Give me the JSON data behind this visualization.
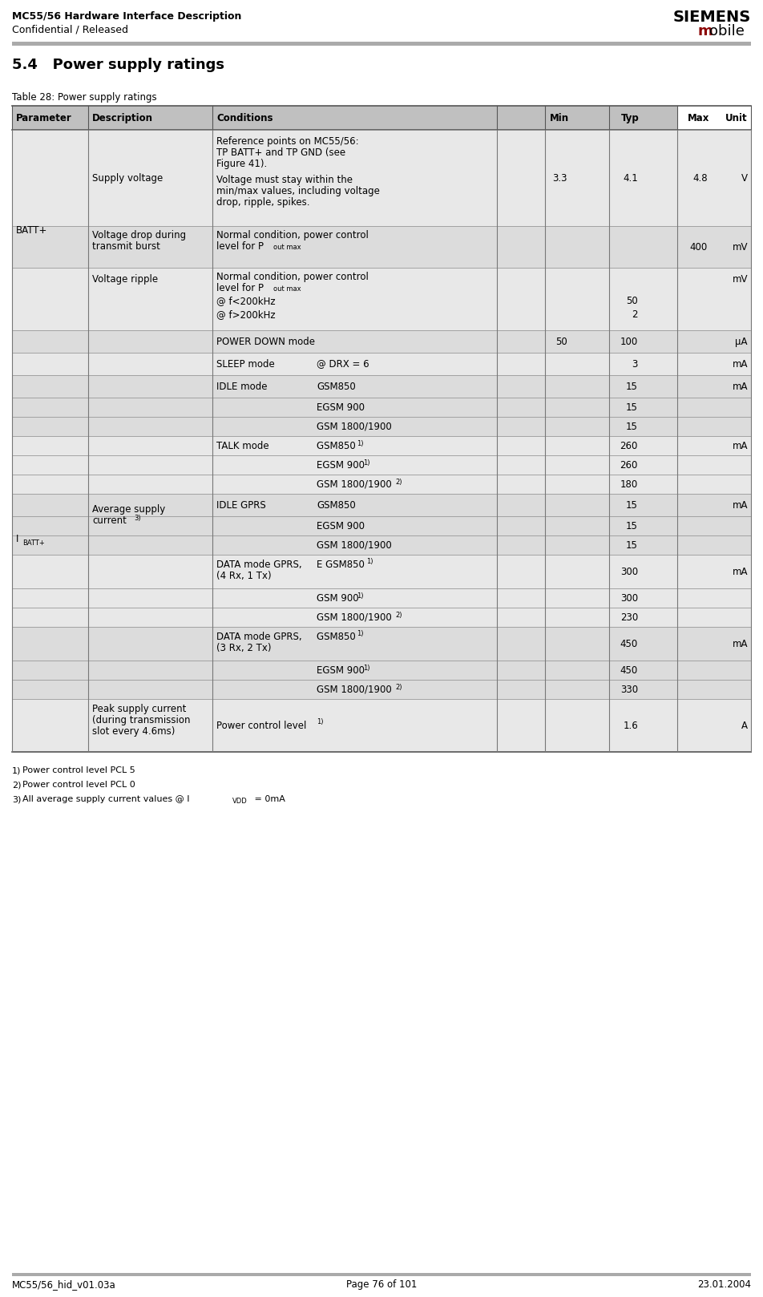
{
  "header_left_line1": "MC55/56 Hardware Interface Description",
  "header_left_line2": "Confidential / Released",
  "header_right_siemens": "SIEMENS",
  "header_right_mobile_m": "m",
  "header_right_mobile_obile": "obile",
  "section_title": "5.4   Power supply ratings",
  "table_caption": "Table 28: Power supply ratings",
  "col_headers": [
    "Parameter",
    "Description",
    "Conditions",
    "Min",
    "Typ",
    "Max",
    "Unit"
  ],
  "header_bg": "#c0c0c0",
  "row_bg_even": "#dcdcdc",
  "row_bg_odd": "#e8e8e8",
  "footer_left": "MC55/56_hid_v01.03a",
  "footer_center": "Page 76 of 101",
  "footer_right": "23.01.2004",
  "mobile_m_color": "#8b0000"
}
